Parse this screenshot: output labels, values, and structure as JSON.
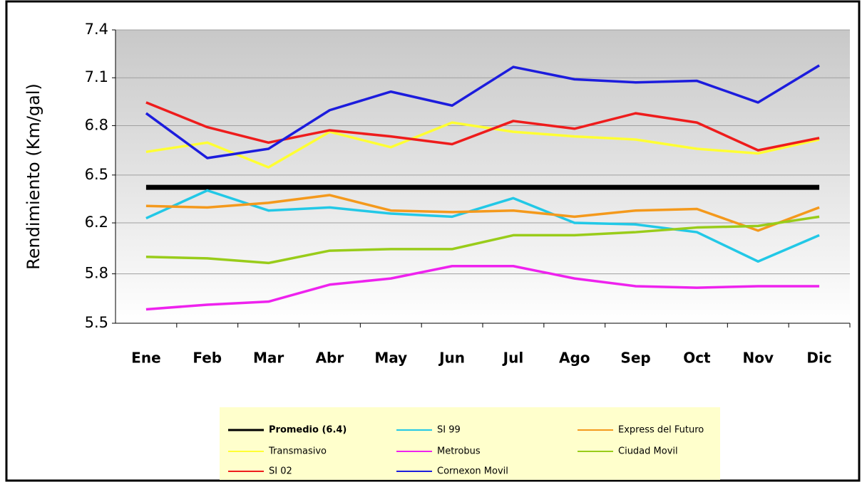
{
  "chart_data": {
    "type": "line",
    "y_label": "Rendimiento (Km/gal)",
    "categories": [
      "Ene",
      "Feb",
      "Mar",
      "Abr",
      "May",
      "Jun",
      "Jul",
      "Ago",
      "Sep",
      "Oct",
      "Nov",
      "Dic"
    ],
    "ylim": [
      5.5,
      7.4
    ],
    "yticks": [
      5.5,
      {
        "value": 5.82,
        "label": "5.8"
      },
      {
        "value": 6.15,
        "label": "6.2"
      },
      {
        "value": 6.46,
        "label": "6.5"
      },
      {
        "value": 6.78,
        "label": "6.8"
      },
      {
        "value": 7.09,
        "label": "7.1"
      },
      7.4
    ],
    "grid": true,
    "series": [
      {
        "name": "Promedio (6.4)",
        "color": "#000000",
        "values": [
          6.38,
          6.38,
          6.38,
          6.38,
          6.38,
          6.38,
          6.38,
          6.38,
          6.38,
          6.38,
          6.38,
          6.38
        ]
      },
      {
        "name": "SI 99",
        "color": "#22c8e6",
        "values": [
          6.18,
          6.36,
          6.23,
          6.25,
          6.21,
          6.19,
          6.31,
          6.15,
          6.14,
          6.09,
          5.9,
          6.07
        ]
      },
      {
        "name": "Express del Futuro",
        "color": "#f4991c",
        "values": [
          6.26,
          6.25,
          6.28,
          6.33,
          6.23,
          6.22,
          6.23,
          6.19,
          6.23,
          6.24,
          6.1,
          6.25
        ]
      },
      {
        "name": "Transmasivo",
        "color": "#ffff33",
        "values": [
          6.61,
          6.67,
          6.51,
          6.74,
          6.64,
          6.8,
          6.74,
          6.71,
          6.69,
          6.63,
          6.6,
          6.69
        ]
      },
      {
        "name": "Metrobus",
        "color": "#ee22ee",
        "values": [
          5.59,
          5.62,
          5.64,
          5.75,
          5.79,
          5.87,
          5.87,
          5.79,
          5.74,
          5.73,
          5.74,
          5.74
        ]
      },
      {
        "name": "Ciudad Movil",
        "color": "#99cc1a",
        "values": [
          5.93,
          5.92,
          5.89,
          5.97,
          5.98,
          5.98,
          6.07,
          6.07,
          6.09,
          6.12,
          6.13,
          6.19
        ]
      },
      {
        "name": "SI 02",
        "color": "#ee1c1c",
        "values": [
          6.93,
          6.77,
          6.67,
          6.75,
          6.71,
          6.66,
          6.81,
          6.76,
          6.86,
          6.8,
          6.62,
          6.7
        ]
      },
      {
        "name": "Cornexon Movil",
        "color": "#1c1cdd",
        "values": [
          6.86,
          6.57,
          6.63,
          6.88,
          7.0,
          6.91,
          7.16,
          7.08,
          7.06,
          7.07,
          6.93,
          7.17
        ]
      }
    ]
  }
}
